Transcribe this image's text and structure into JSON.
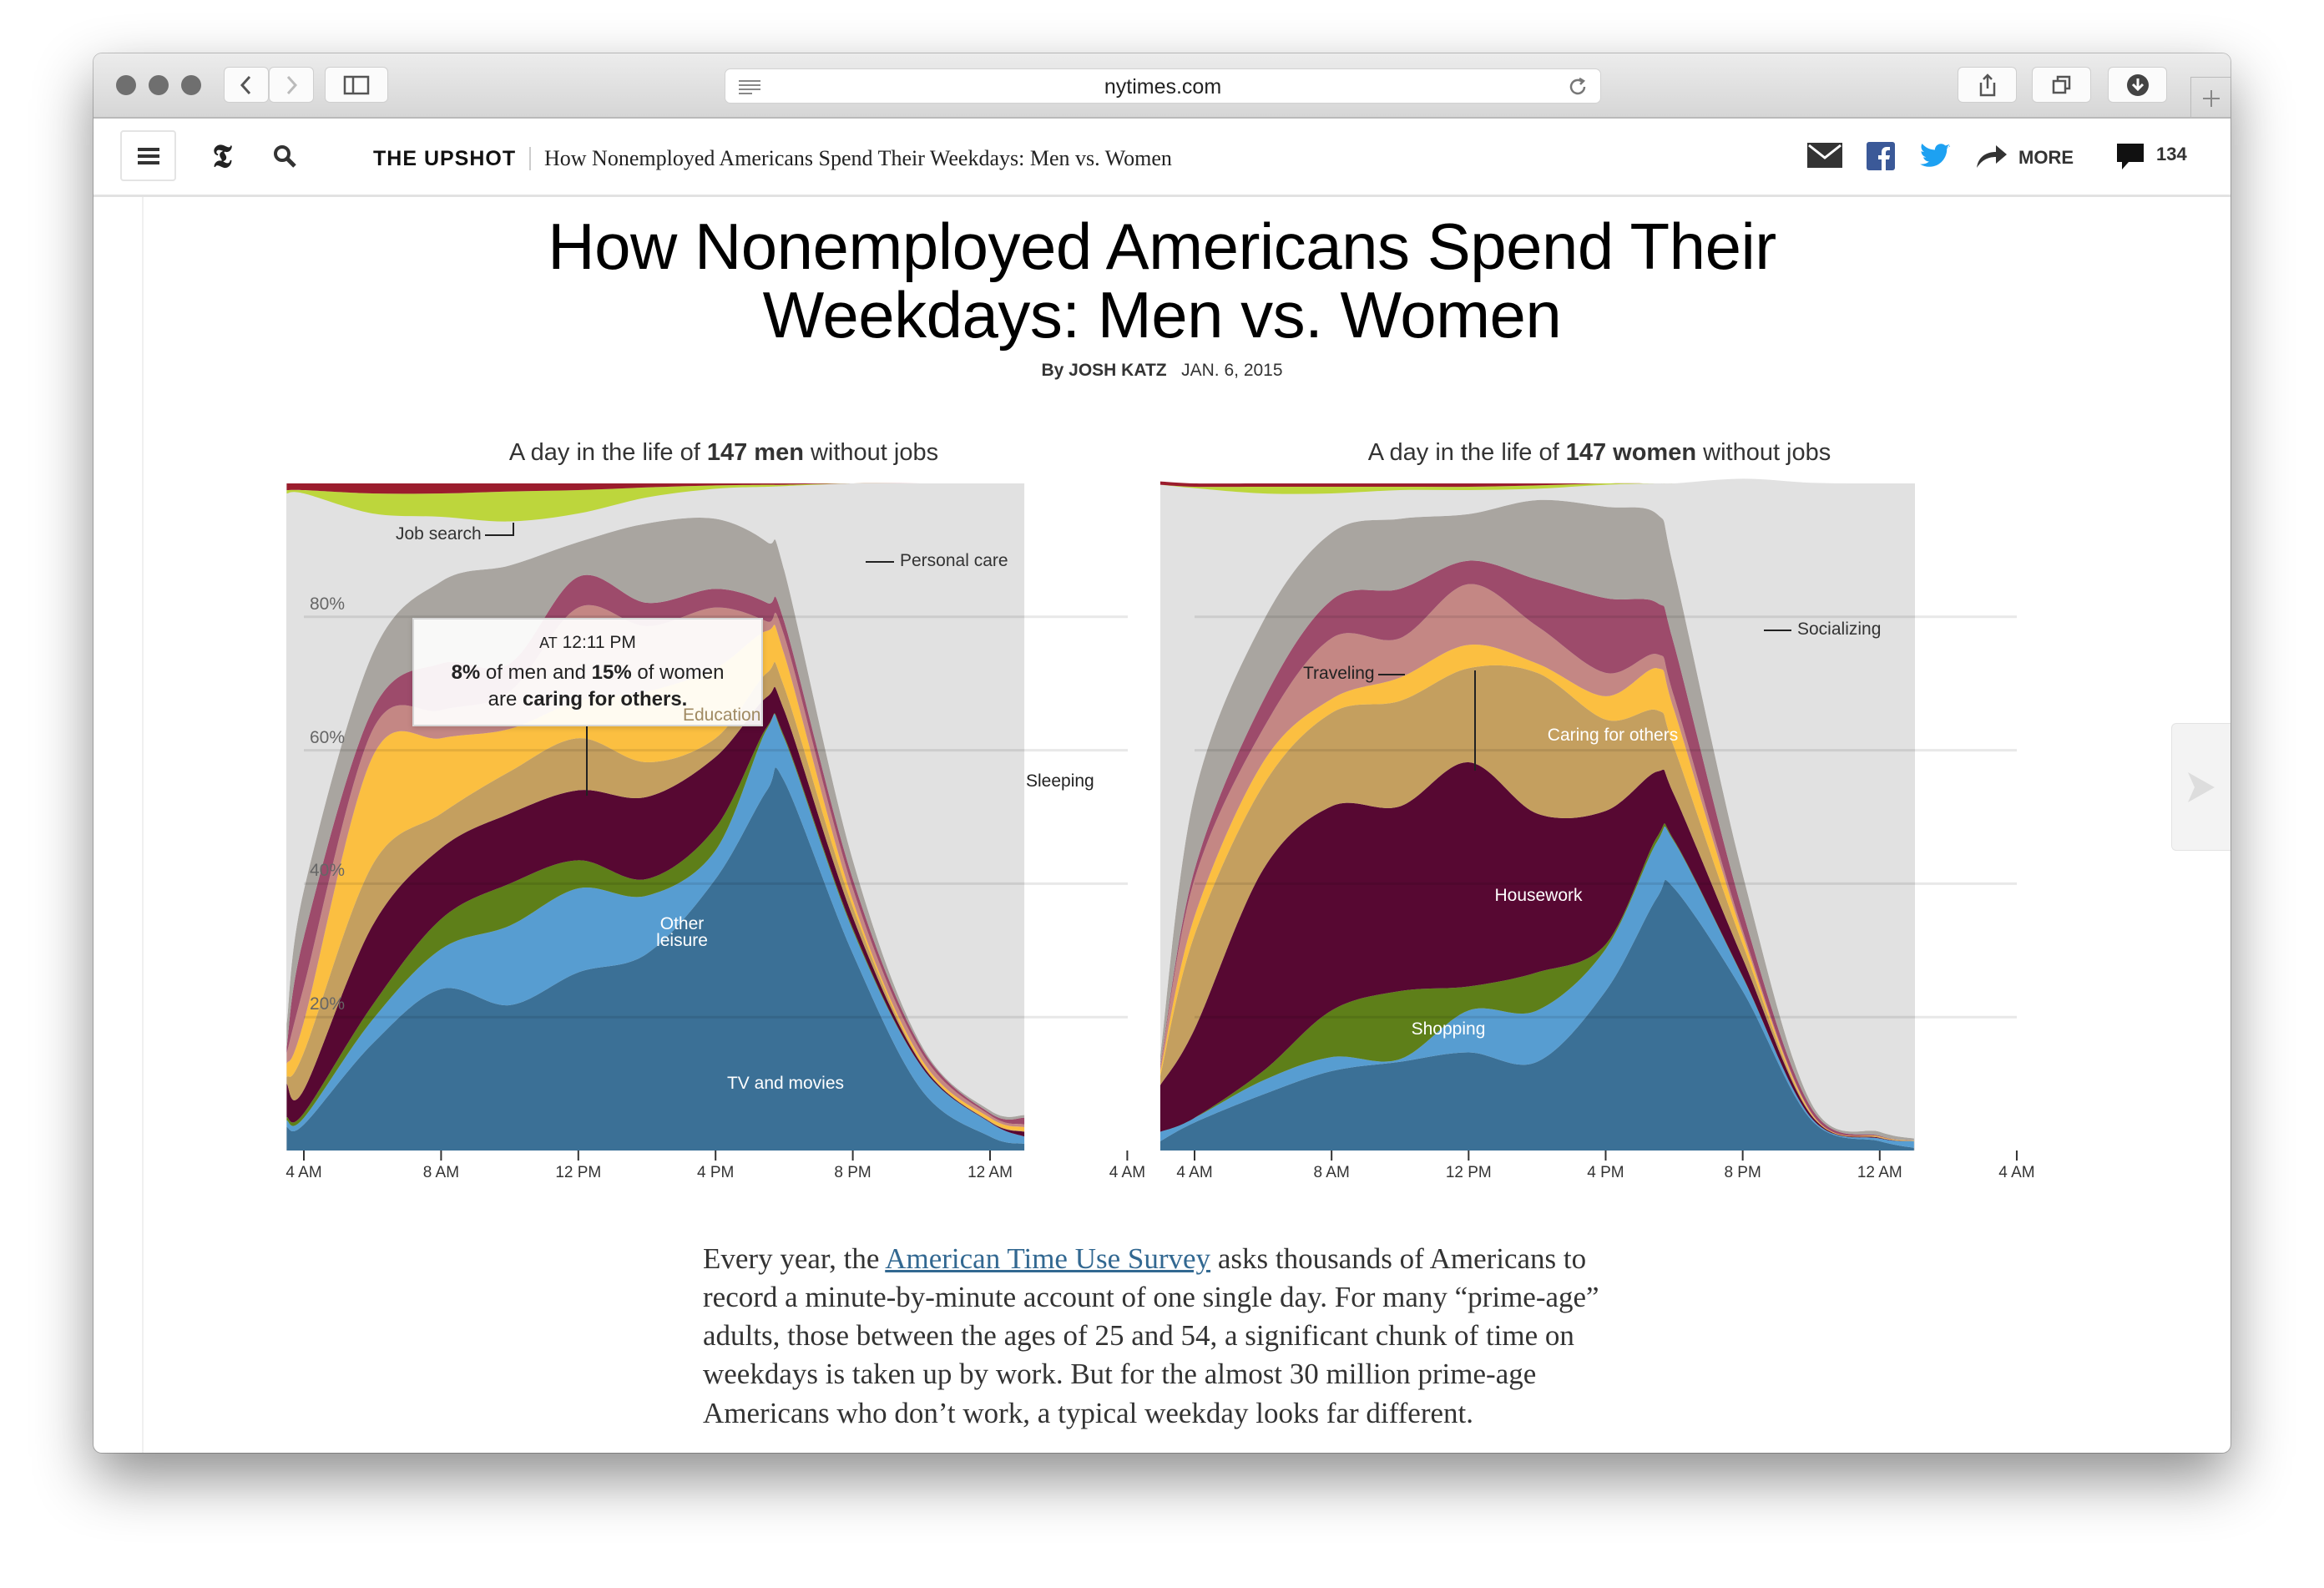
{
  "browser": {
    "url": "nytimes.com"
  },
  "nav": {
    "section": "THE UPSHOT",
    "headline": "How Nonemployed Americans Spend Their Weekdays: Men vs. Women",
    "more": "MORE",
    "comments": "134"
  },
  "article": {
    "title_line1": "How Nonemployed Americans Spend Their",
    "title_line2": "Weekdays: Men vs. Women",
    "byline_prefix": "By",
    "author": "JOSH KATZ",
    "date": "JAN. 6, 2015",
    "body_lines": [
      {
        "before": "Every year, the ",
        "link": "American Time Use Survey",
        "after": " asks thousands of Americans to"
      },
      {
        "text": "record a minute-by-minute account of one single day. For many “prime-age”"
      },
      {
        "text": "adults, those between the ages of 25 and 54, a significant chunk of time on"
      },
      {
        "text": "weekdays is taken up by work. But for the almost 30 million prime-age"
      },
      {
        "text": "Americans who don’t work, a typical weekday looks far different."
      }
    ]
  },
  "tooltip": {
    "prefix": "AT",
    "time": "12:11 PM",
    "p1": "8%",
    "p2": " of men and ",
    "p3": "15%",
    "p4": " of women",
    "p5": "are ",
    "p6": "caring for others."
  },
  "colors": {
    "TV and movies": "#3b7096",
    "Other leisure": "#579dd1",
    "Shopping": "#5e7f19",
    "Housework": "#570832",
    "Caring for others": "#c49f5f",
    "Education": "#fbbf41",
    "Traveling": "#c48784",
    "Socializing": "#9d4b6b",
    "Personal care": "#a9a5a0",
    "Sleeping": "#e1e1e1",
    "Job search": "#bdd63c",
    "top": "#9b1d2d"
  },
  "chart_data": [
    {
      "type": "area",
      "stacked": true,
      "title_pre": "A day in the life of ",
      "title_bold": "147 men",
      "title_post": " without jobs",
      "ylim": [
        0,
        100
      ],
      "y_ticks": [
        "20%",
        "40%",
        "60%",
        "80%"
      ],
      "x_ticks": [
        "4 AM",
        "8 AM",
        "12 PM",
        "4 PM",
        "8 PM",
        "12 AM",
        "4 AM"
      ],
      "grid": true,
      "x": [
        "3:30 AM",
        "4 AM",
        "6 AM",
        "8 AM",
        "10 AM",
        "12 PM",
        "2 PM",
        "4 PM",
        "5:30 PM",
        "6 PM",
        "8 PM",
        "10 PM",
        "12 AM",
        "1 AM"
      ],
      "series": [
        {
          "name": "TV and movies",
          "values": [
            3.5,
            3.9,
            16,
            24.2,
            21.8,
            26.7,
            29.5,
            40.7,
            54,
            55.4,
            29.5,
            9.1,
            2.1,
            1
          ]
        },
        {
          "name": "Other leisure",
          "values": [
            1,
            1,
            3.6,
            6,
            11.9,
            12.6,
            8.7,
            4.3,
            9.2,
            6.4,
            3.5,
            3.5,
            2.1,
            1.1
          ]
        },
        {
          "name": "",
          "key": "Shopping",
          "values": [
            0.5,
            0.7,
            2.2,
            4.5,
            6.3,
            4.2,
            2.5,
            3.4,
            0.3,
            0.3,
            0.3,
            0,
            0,
            0
          ]
        },
        {
          "name": "",
          "key": "Housework",
          "values": [
            5,
            3.5,
            11.9,
            10.6,
            10.5,
            10.5,
            12.3,
            10.6,
            4.5,
            3.9,
            1.7,
            0.4,
            0.1,
            0.7
          ]
        },
        {
          "name": "",
          "key": "Caring for others",
          "values": [
            1,
            5.6,
            9.1,
            5.2,
            6.3,
            7.8,
            5.2,
            2.8,
            3.6,
            3.5,
            1.5,
            0.2,
            0.1,
            0.1
          ]
        },
        {
          "name": "Education",
          "values": [
            2,
            4.6,
            16.2,
            11.3,
            6.4,
            5.6,
            10.6,
            10.5,
            6.3,
            4.9,
            1,
            0.5,
            0.5,
            0.6
          ]
        },
        {
          "name": "",
          "key": "Traveling",
          "values": [
            1.5,
            5.3,
            4,
            4.2,
            5.6,
            14,
            9.8,
            9.1,
            1.4,
            2.8,
            1.8,
            1,
            0.4,
            0.4
          ]
        },
        {
          "name": "",
          "key": "Socializing",
          "values": [
            1,
            7.4,
            3,
            7,
            4.2,
            4.6,
            3.5,
            2.8,
            2.8,
            2.1,
            1.4,
            0.7,
            0.3,
            1
          ]
        },
        {
          "name": "Personal care",
          "values": [
            3.5,
            7,
            8.4,
            12.3,
            14.7,
            5.2,
            11.9,
            10.5,
            9.1,
            7.7,
            2.8,
            0.4,
            0.4,
            0.4
          ]
        },
        {
          "name": "Sleeping",
          "values": [
            79.5,
            59.5,
            21.1,
            9.7,
            6.6,
            4.3,
            3.9,
            4.5,
            8.3,
            12.6,
            56.5,
            84.2,
            94,
            94.7
          ]
        },
        {
          "name": "Job search",
          "values": [
            0.5,
            0.5,
            3,
            3.5,
            4.5,
            3.5,
            1.5,
            0.5,
            0.3,
            0.2,
            0,
            0,
            0,
            0
          ]
        },
        {
          "name": "",
          "key": "top",
          "values": [
            1,
            1,
            1.5,
            1.5,
            1.2,
            1,
            0.6,
            0.3,
            0.2,
            0.2,
            0,
            0,
            0,
            0
          ]
        }
      ]
    },
    {
      "type": "area",
      "stacked": true,
      "title_pre": "A day in the life of ",
      "title_bold": "147 women",
      "title_post": " without jobs",
      "ylim": [
        0,
        100
      ],
      "x_ticks": [
        "4 AM",
        "8 AM",
        "12 PM",
        "4 PM",
        "8 PM",
        "12 AM",
        "4 AM"
      ],
      "grid": true,
      "x": [
        "3 AM",
        "4 AM",
        "6 AM",
        "8 AM",
        "10 AM",
        "12 PM",
        "2 PM",
        "4 PM",
        "5:30 PM",
        "6 PM",
        "8 PM",
        "10 PM",
        "12 AM",
        "1 AM"
      ],
      "series": [
        {
          "name": "",
          "key": "TV and movies",
          "values": [
            1.4,
            4.2,
            8.4,
            11.9,
            13.3,
            14.7,
            13.3,
            23.9,
            37.9,
            39.3,
            23.9,
            4.6,
            1.4,
            0.4
          ]
        },
        {
          "name": "",
          "key": "Other leisure",
          "values": [
            1.4,
            0.7,
            2.1,
            2.1,
            0.4,
            6.3,
            7.7,
            6.3,
            8.4,
            7,
            2.1,
            0.3,
            0.4,
            1
          ]
        },
        {
          "name": "Shopping",
          "values": [
            0,
            0,
            1.4,
            7,
            10.2,
            3.6,
            5.7,
            0.7,
            0.7,
            0.2,
            0.1,
            0,
            0,
            0
          ]
        },
        {
          "name": "Housework",
          "values": [
            7,
            13.3,
            30.2,
            30.6,
            27.7,
            33.6,
            23.8,
            20,
            9.8,
            6.8,
            2.7,
            0.4,
            0.1,
            0
          ]
        },
        {
          "name": "Caring for others",
          "values": [
            1.4,
            14.1,
            12.6,
            14,
            15.8,
            14.1,
            21.1,
            13.7,
            9.2,
            7.1,
            2.1,
            0.1,
            0.1,
            0.05
          ]
        },
        {
          "name": "",
          "key": "Education",
          "values": [
            0.7,
            2.8,
            3.5,
            2.1,
            3.5,
            3.5,
            1.4,
            3.5,
            6.3,
            5.6,
            1.4,
            0.2,
            0.1,
            0.05
          ]
        },
        {
          "name": "Traveling",
          "values": [
            0.7,
            5.6,
            5,
            9.1,
            5.9,
            9.1,
            5.6,
            3.5,
            2.1,
            2,
            0.7,
            0.1,
            0,
            0
          ]
        },
        {
          "name": "Socializing",
          "values": [
            0.3,
            1.4,
            4.2,
            5.7,
            7.4,
            3.5,
            7,
            11.2,
            7.7,
            7.8,
            2.8,
            0.7,
            0.1,
            0
          ]
        },
        {
          "name": "",
          "key": "Personal care",
          "values": [
            1.4,
            11.2,
            11.9,
            10.1,
            10.5,
            7,
            11.9,
            13.7,
            13.3,
            11.2,
            5.6,
            0.7,
            0.6,
            0.3
          ]
        },
        {
          "name": "",
          "key": "Sleeping",
          "values": [
            85.5,
            46,
            19.2,
            5.9,
            4.3,
            3.6,
            1.7,
            3.3,
            4.6,
            13,
            59.3,
            93,
            97.2,
            98.2
          ]
        },
        {
          "name": "",
          "key": "Job search",
          "values": [
            0,
            0.2,
            1,
            1,
            0.5,
            0.5,
            0.5,
            0.2,
            0,
            0,
            0,
            0,
            0,
            0
          ]
        },
        {
          "name": "",
          "key": "top",
          "values": [
            0.5,
            0.5,
            0.5,
            0.5,
            0.5,
            0.5,
            0.3,
            0,
            0,
            0,
            0,
            0,
            0,
            0
          ]
        }
      ]
    }
  ]
}
